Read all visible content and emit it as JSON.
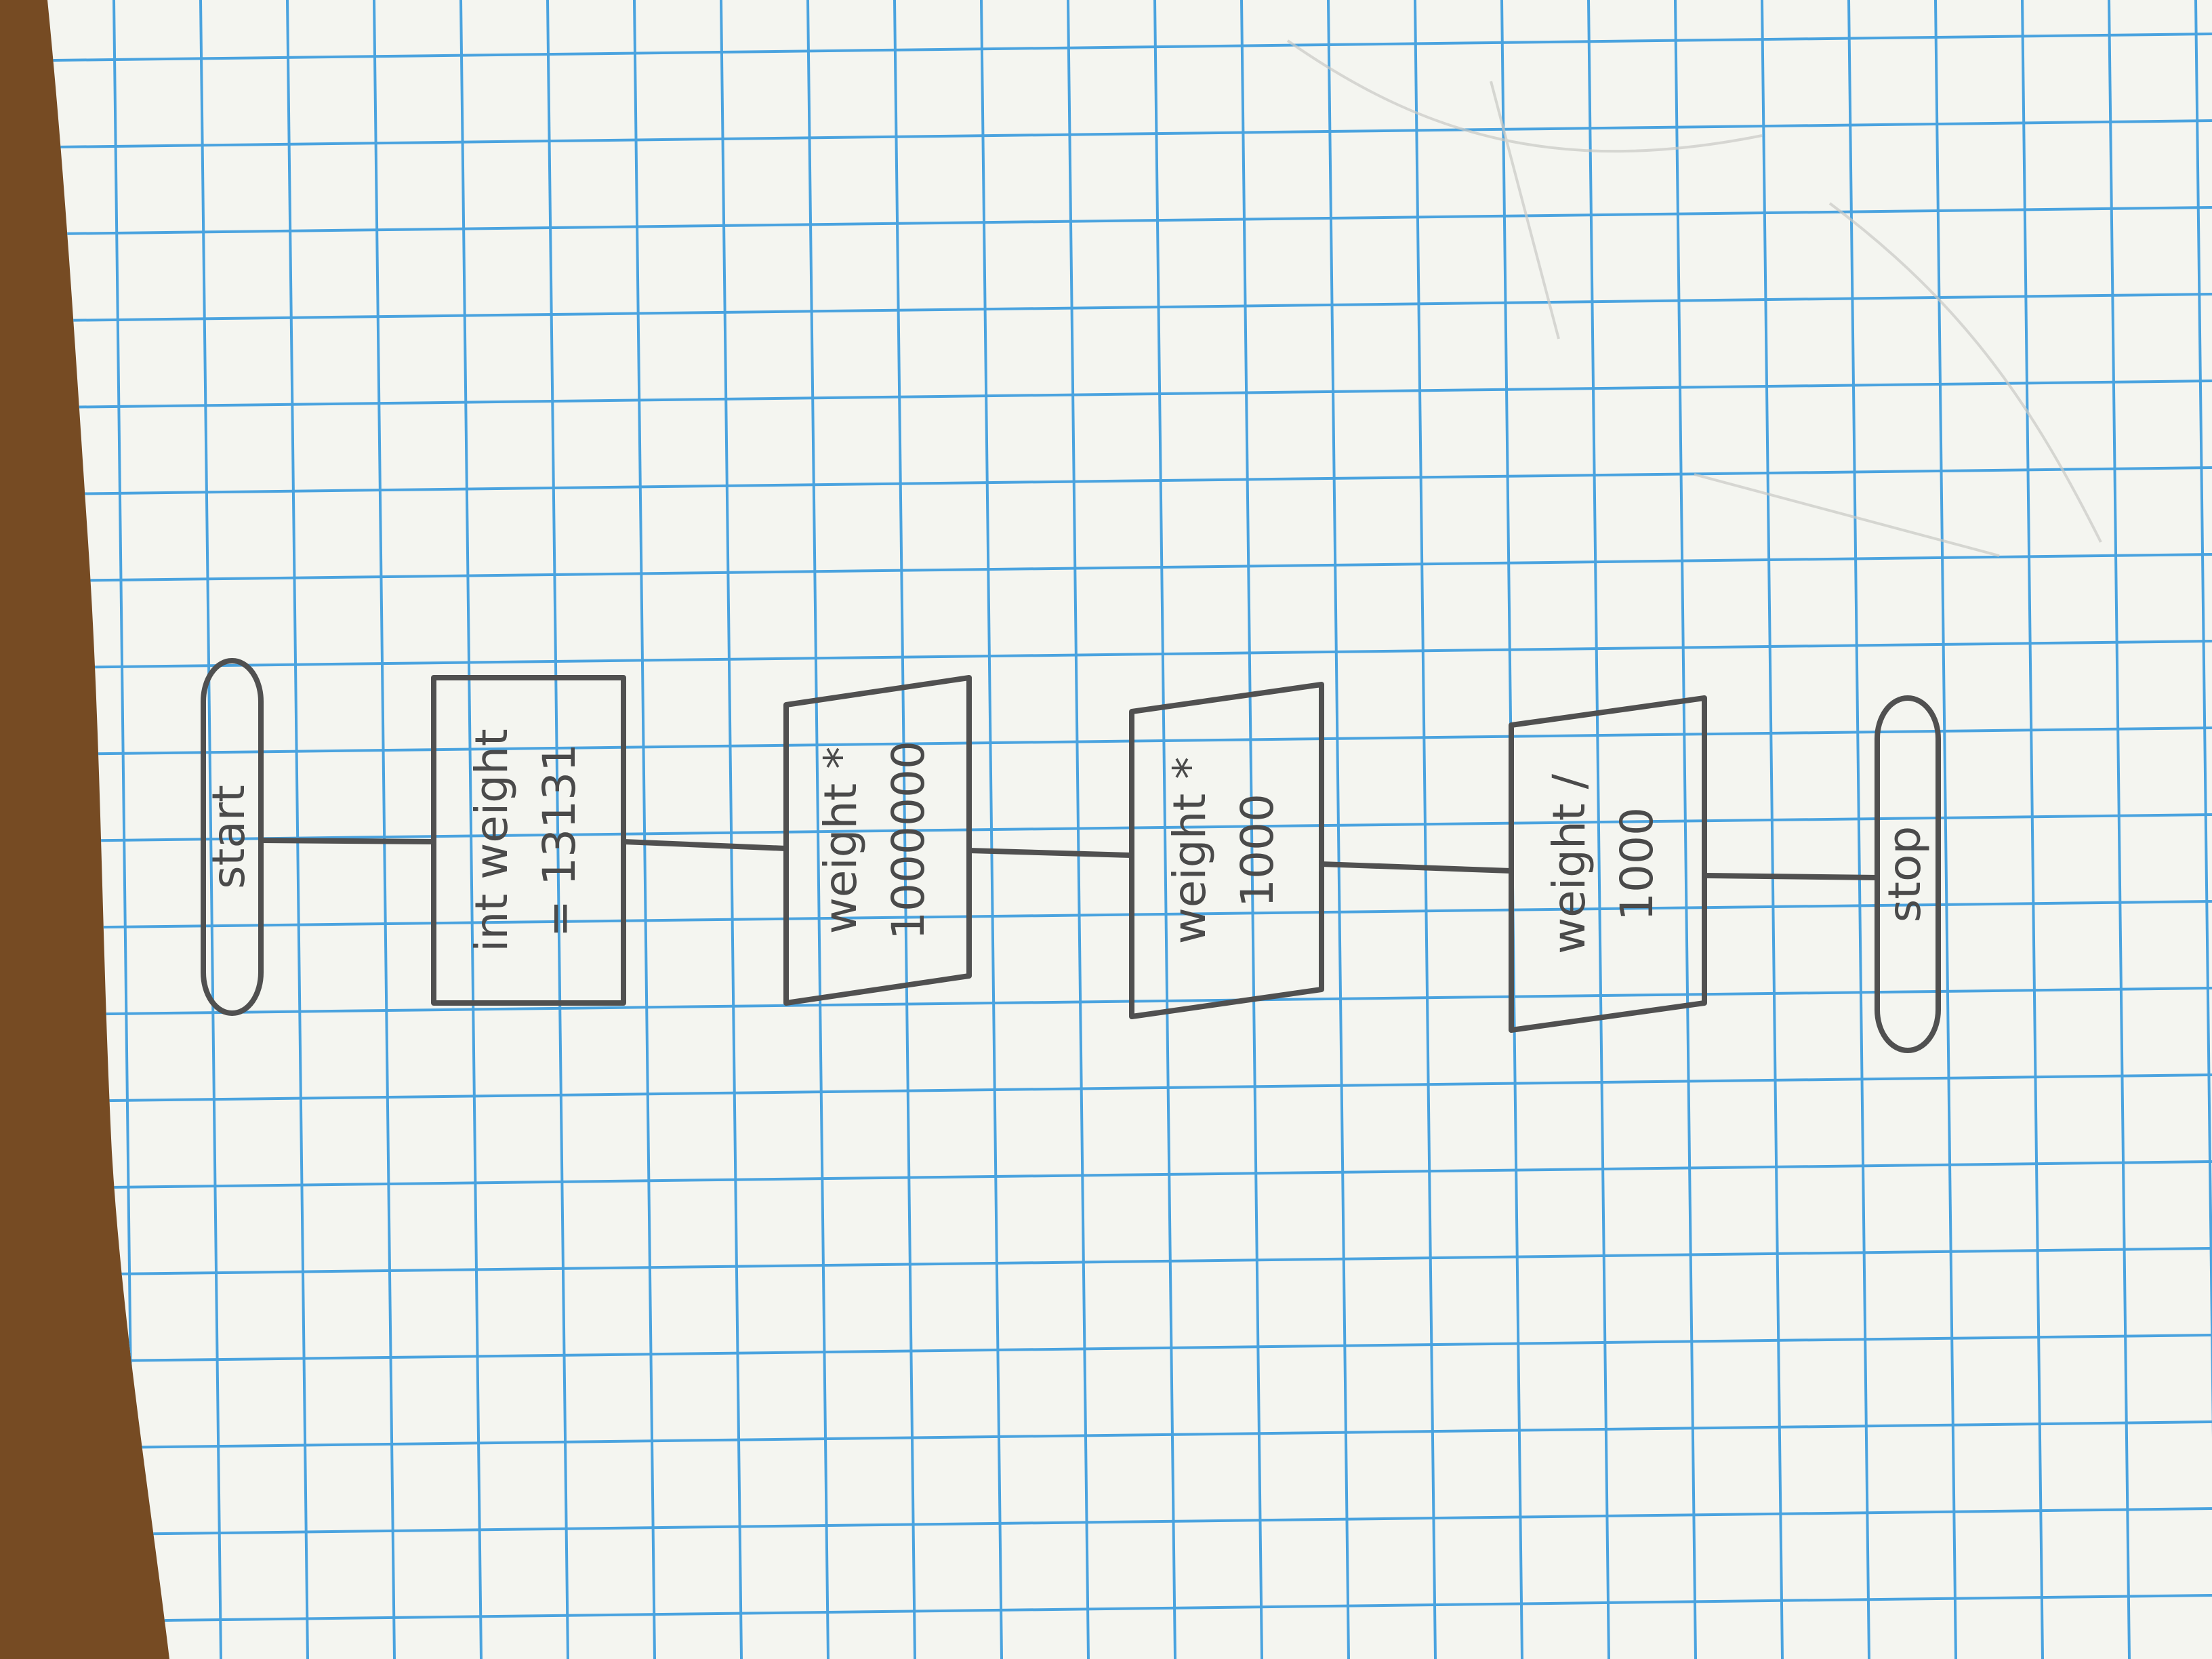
{
  "paper": {
    "grid_color": "#4aa3df",
    "paper_color": "#f4f5f0",
    "table_color": "#6e4520",
    "pencil_color": "#505050"
  },
  "flowchart": {
    "start": {
      "label": "start"
    },
    "declaration": {
      "line1": "int weight",
      "line2": "= 13131"
    },
    "outputs": [
      {
        "line1": "weight *",
        "line2": "1000000"
      },
      {
        "line1": "weight *",
        "line2": "1000"
      },
      {
        "line1": "weight /",
        "line2": "1000"
      }
    ],
    "stop": {
      "label": "stop"
    }
  }
}
